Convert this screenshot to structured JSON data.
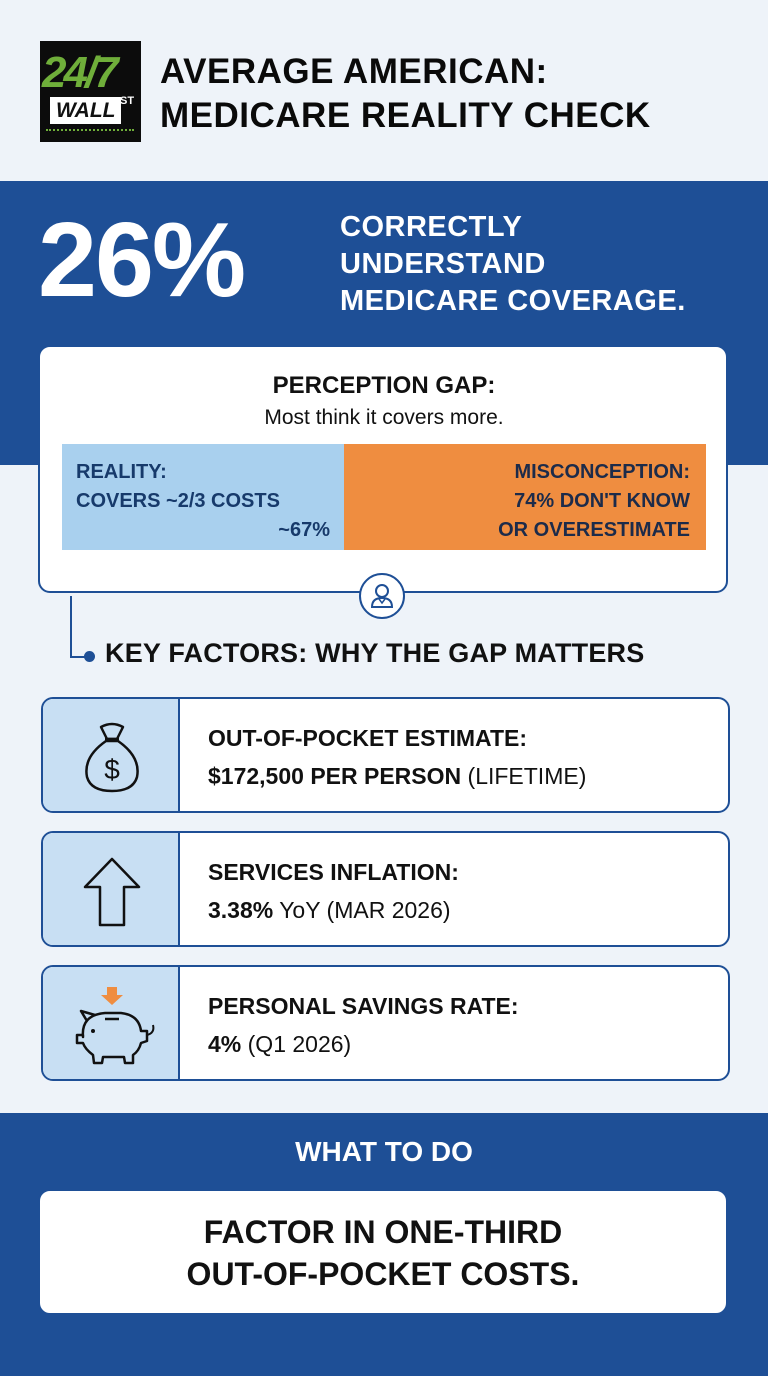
{
  "header": {
    "logo": {
      "top": "24/7",
      "bottom": "WALL",
      "superscript": "ST"
    },
    "title_line1": "AVERAGE AMERICAN:",
    "title_line2": "MEDICARE REALITY CHECK"
  },
  "hero": {
    "stat": "26%",
    "line1": "CORRECTLY",
    "line2": "UNDERSTAND",
    "line3": "MEDICARE COVERAGE."
  },
  "perception": {
    "title": "PERCEPTION GAP:",
    "subtitle": "Most think it covers more.",
    "reality_line1": "REALITY:",
    "reality_line2": "COVERS ~2/3 COSTS",
    "reality_line3": "~67%",
    "reality_share": 0.39,
    "misconception_line1": "MISCONCEPTION:",
    "misconception_line2": "74% DON'T KNOW",
    "misconception_line3": "OR OVERESTIMATE",
    "icon": "person-icon"
  },
  "key_factors": {
    "title": "KEY FACTORS: WHY THE GAP MATTERS",
    "items": [
      {
        "icon": "money-bag-icon",
        "label": "OUT-OF-POCKET ESTIMATE:",
        "value_bold": "$172,500 PER PERSON",
        "value_rest": " (LIFETIME)"
      },
      {
        "icon": "arrow-up-icon",
        "label": "SERVICES INFLATION:",
        "value_bold": "3.38%",
        "value_rest": " YoY (MAR 2026)"
      },
      {
        "icon": "piggy-bank-icon",
        "label": "PERSONAL SAVINGS RATE:",
        "value_bold": "4%",
        "value_rest": " (Q1 2026)"
      }
    ]
  },
  "what_to_do": {
    "title": "WHAT TO DO",
    "line1": "FACTOR IN ONE-THIRD",
    "line2": "OUT-OF-POCKET COSTS."
  },
  "colors": {
    "navy": "#1e4f96",
    "reality_blue": "#a9d0ee",
    "misconception_orange": "#ef8d40",
    "icon_bg": "#c8dff3",
    "page_bg": "#eef3f9"
  }
}
